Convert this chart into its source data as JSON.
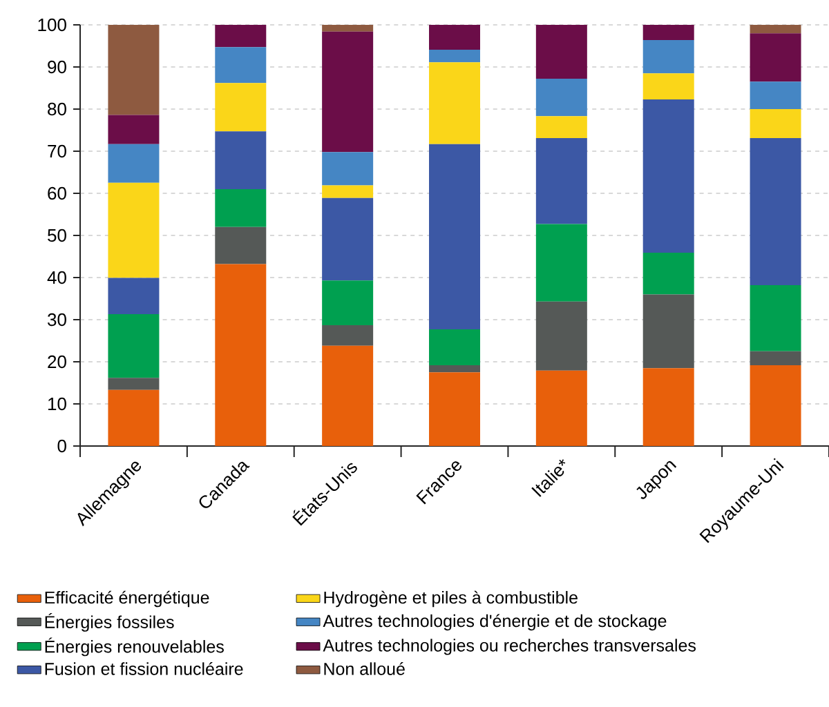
{
  "chart_data": {
    "type": "bar",
    "stacked": true,
    "categories": [
      "Allemagne",
      "Canada",
      "États-Unis",
      "France",
      "Italie*",
      "Japon",
      "Royaume-Uni"
    ],
    "series": [
      {
        "name": "Efficacité énergétique",
        "color": "#e8600b",
        "values": [
          13.3,
          43.2,
          23.8,
          17.5,
          17.9,
          18.5,
          19.2
        ]
      },
      {
        "name": "Énergies fossiles",
        "color": "#555957",
        "values": [
          2.9,
          8.8,
          4.9,
          1.7,
          16.4,
          17.5,
          3.3
        ]
      },
      {
        "name": "Énergies renouvelables",
        "color": "#00a050",
        "values": [
          15.1,
          9.0,
          10.6,
          8.5,
          18.4,
          9.9,
          15.7
        ]
      },
      {
        "name": "Fusion et fission nucléaire",
        "color": "#3c58a5",
        "values": [
          8.6,
          13.7,
          19.6,
          44.0,
          20.4,
          36.4,
          34.9
        ]
      },
      {
        "name": "Hydrogène et piles à combustible",
        "color": "#fad619",
        "values": [
          22.6,
          11.5,
          3.0,
          19.4,
          5.2,
          6.2,
          6.9
        ]
      },
      {
        "name": "Autres technologies d'énergie et de stockage",
        "color": "#4586c4",
        "values": [
          9.2,
          8.5,
          7.9,
          3.0,
          8.9,
          7.9,
          6.5
        ]
      },
      {
        "name": "Autres technologies ou recherches transversales",
        "color": "#6b0d48",
        "values": [
          6.9,
          5.3,
          28.6,
          5.9,
          12.8,
          3.6,
          11.5
        ]
      },
      {
        "name": "Non alloué",
        "color": "#8e5a40",
        "values": [
          21.4,
          0,
          1.6,
          0,
          0,
          0,
          2.0
        ]
      }
    ],
    "ylim": [
      0,
      100
    ],
    "yticks": [
      0,
      10,
      20,
      30,
      40,
      50,
      60,
      70,
      80,
      90,
      100
    ],
    "grid": "y",
    "legend": "bottom"
  }
}
